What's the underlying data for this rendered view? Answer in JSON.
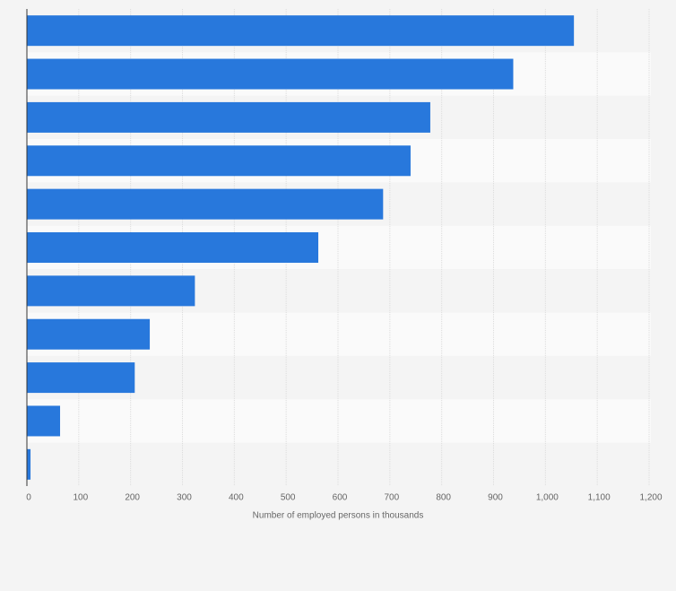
{
  "chart_data": {
    "type": "hbar",
    "x_label": "Number of employed persons in thousands",
    "categories": [
      null,
      null,
      null,
      null,
      null,
      null,
      null,
      null,
      null,
      null,
      null
    ],
    "values": [
      1055,
      938,
      778,
      740,
      687,
      562,
      324,
      237,
      208,
      64,
      7
    ],
    "color": "#2878dc",
    "xlim": [
      0,
      1200
    ],
    "xticks": [
      0,
      100,
      200,
      300,
      400,
      500,
      600,
      700,
      800,
      900,
      {
        "value": 1000,
        "label": "1,000"
      },
      {
        "value": 1100,
        "label": "1,100"
      },
      {
        "value": 1200,
        "label": "1,200"
      }
    ],
    "grid": true
  }
}
